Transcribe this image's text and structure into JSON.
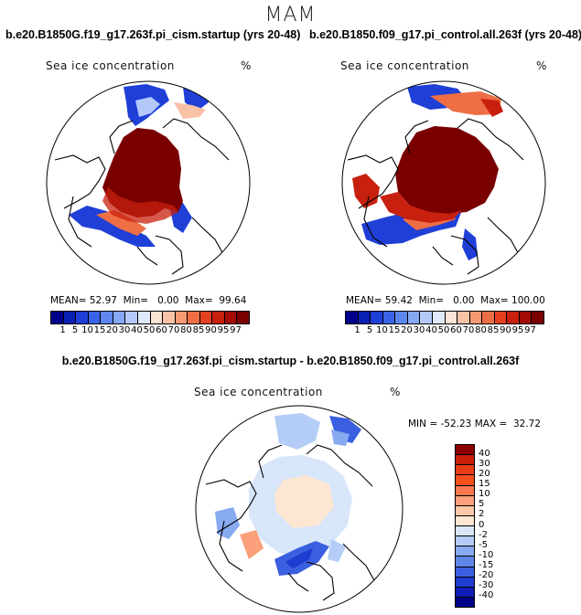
{
  "figure": {
    "season": "MAM",
    "diff_title": "b.e20.B1850G.f19_g17.263f.pi_cism.startup - b.e20.B1850.f09_g17.pi_control.all.263f"
  },
  "chart_data": [
    {
      "type": "heatmap",
      "projection": "north polar stereographic",
      "title": "b.e20.B1850G.f19_g17.263f.pi_cism.startup (yrs 20-48)",
      "variable": "Sea ice concentration",
      "units": "%",
      "stats": {
        "mean_label": "MEAN=",
        "mean": "52.97",
        "min_label": "Min=",
        "min": "0.00",
        "max_label": "Max=",
        "max": "99.64"
      },
      "levels": [
        "1",
        "5",
        "10",
        "15",
        "20",
        "30",
        "40",
        "50",
        "60",
        "70",
        "80",
        "85",
        "90",
        "95",
        "97"
      ],
      "colors": [
        "#00008b",
        "#0a1fb4",
        "#1f3fd6",
        "#3a63e6",
        "#5d86ef",
        "#86a8f5",
        "#b4c9fa",
        "#dfe8fc",
        "#fbe3d6",
        "#f9c2a6",
        "#f59a73",
        "#ee6e45",
        "#e3411f",
        "#c8200e",
        "#a30a05",
        "#7a0000"
      ]
    },
    {
      "type": "heatmap",
      "projection": "north polar stereographic",
      "title": "b.e20.B1850.f09_g17.pi_control.all.263f (yrs 20-48)",
      "variable": "Sea ice concentration",
      "units": "%",
      "stats": {
        "mean_label": "MEAN=",
        "mean": "59.42",
        "min_label": "Min=",
        "min": "0.00",
        "max_label": "Max=",
        "max": "100.00"
      },
      "levels": [
        "1",
        "5",
        "10",
        "15",
        "20",
        "30",
        "40",
        "50",
        "60",
        "70",
        "80",
        "85",
        "90",
        "95",
        "97"
      ],
      "colors": [
        "#00008b",
        "#0a1fb4",
        "#1f3fd6",
        "#3a63e6",
        "#5d86ef",
        "#86a8f5",
        "#b4c9fa",
        "#dfe8fc",
        "#fbe3d6",
        "#f9c2a6",
        "#f59a73",
        "#ee6e45",
        "#e3411f",
        "#c8200e",
        "#a30a05",
        "#7a0000"
      ]
    },
    {
      "type": "heatmap",
      "projection": "north polar stereographic",
      "title": "b.e20.B1850G.f19_g17.263f.pi_cism.startup - b.e20.B1850.f09_g17.pi_control.all.263f",
      "variable": "Sea ice concentration",
      "units": "%",
      "stats": {
        "min_label": "MIN =",
        "min": "-52.23",
        "max_label": "MAX =",
        "max": "32.72"
      },
      "levels": [
        "40",
        "30",
        "20",
        "15",
        "10",
        "5",
        "2",
        "0",
        "-2",
        "-5",
        "-10",
        "-15",
        "-20",
        "-30",
        "-40"
      ],
      "colors": [
        "#8b0000",
        "#c81e0a",
        "#e83c14",
        "#f4501e",
        "#f87850",
        "#fba07a",
        "#fdc8aa",
        "#fde6d2",
        "#d8e6fa",
        "#b4cdf7",
        "#87aaf0",
        "#5f87e8",
        "#3a5fe0",
        "#1e3cd0",
        "#0f1eb4",
        "#000087"
      ]
    }
  ]
}
